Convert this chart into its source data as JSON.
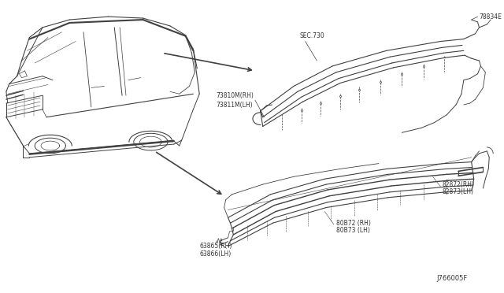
{
  "bg_color": "#ffffff",
  "line_color": "#404040",
  "text_color": "#333333",
  "diagram_id": "J766005F",
  "labels": {
    "sec730": "SEC.730",
    "part78834E": "78834E",
    "part73810M_RH": "73810M(RH)",
    "part73811M_LH": "73811M(LH)",
    "part82872_RH": "82872(RH)",
    "part82873_LH": "82873(LH)",
    "part80B72_RH": "80B72 (RH)",
    "part80B73_LH": "80B73 (LH)",
    "part63865_RH": "63865(RH)",
    "part63866_LH": "63866(LH)"
  },
  "figsize": [
    6.4,
    3.72
  ],
  "dpi": 100
}
